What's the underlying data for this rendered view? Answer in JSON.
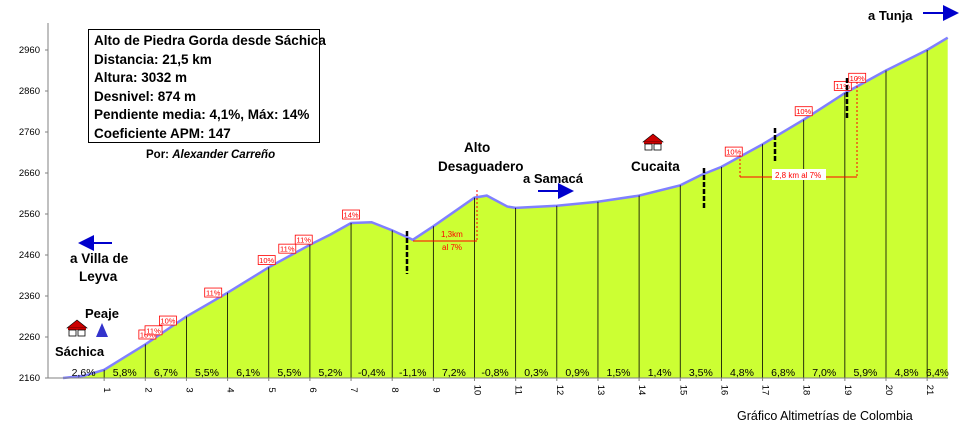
{
  "info": {
    "title": "Alto de Piedra Gorda desde Sáchica",
    "distance": "Distancia: 21,5 km",
    "altitude": "Altura: 3032 m",
    "gain": "Desnivel: 874 m",
    "gradient": "Pendiente media: 4,1%, Máx: 14%",
    "apm": "Coeficiente APM: 147",
    "author_prefix": "Por:",
    "author_name": "Alexander Carreño"
  },
  "credit": "Gráfico Altimetrías de Colombia",
  "labels": {
    "tunja": "a Tunja",
    "villa_de_leyva_1": "a Villa de",
    "villa_de_leyva_2": "Leyva",
    "peaje": "Peaje",
    "sachica": "Sáchica",
    "alto_1": "Alto",
    "alto_2": "Desaguadero",
    "samaca": "a Samacá",
    "cucaita": "Cucaita",
    "span1_1": "1,3km",
    "span1_2": "al 7%",
    "span2": "2,8 km al 7%"
  },
  "colors": {
    "fill": "#ccff33",
    "profile_line": "#8080ff",
    "arrow": "#0000cc",
    "badge": "#ff0000",
    "peaje_marker": "#3333cc"
  },
  "chart_data": {
    "type": "area",
    "title": "Alto de Piedra Gorda desde Sáchica",
    "xlabel": "",
    "ylabel": "",
    "xlim": [
      0,
      21.5
    ],
    "ylim": [
      2160,
      3010
    ],
    "y_ticks": [
      2160,
      2260,
      2360,
      2460,
      2560,
      2660,
      2760,
      2860,
      2960
    ],
    "x_ticks": [
      "1",
      "2",
      "3",
      "4",
      "5",
      "6",
      "7",
      "8",
      "9",
      "10",
      "11",
      "12",
      "13",
      "14",
      "15",
      "16",
      "17",
      "18",
      "19",
      "20",
      "21"
    ],
    "grid": false,
    "profile": [
      [
        0,
        2160
      ],
      [
        0.5,
        2165
      ],
      [
        1,
        2180
      ],
      [
        2,
        2242
      ],
      [
        3,
        2310
      ],
      [
        4,
        2368
      ],
      [
        5,
        2430
      ],
      [
        6,
        2485
      ],
      [
        6.5,
        2510
      ],
      [
        7,
        2538
      ],
      [
        7.5,
        2540
      ],
      [
        8,
        2520
      ],
      [
        8.5,
        2497
      ],
      [
        9,
        2530
      ],
      [
        10,
        2600
      ],
      [
        10.3,
        2605
      ],
      [
        10.8,
        2578
      ],
      [
        11,
        2575
      ],
      [
        12,
        2580
      ],
      [
        13,
        2590
      ],
      [
        14,
        2605
      ],
      [
        15,
        2630
      ],
      [
        15.5,
        2655
      ],
      [
        16,
        2675
      ],
      [
        17,
        2730
      ],
      [
        18,
        2790
      ],
      [
        19,
        2855
      ],
      [
        20,
        2910
      ],
      [
        21,
        2960
      ],
      [
        21.5,
        2990
      ]
    ],
    "segments": [
      {
        "km": 1,
        "pct": "2,6%"
      },
      {
        "km": 2,
        "pct": "5,8%"
      },
      {
        "km": 3,
        "pct": "6,7%"
      },
      {
        "km": 4,
        "pct": "5,5%"
      },
      {
        "km": 5,
        "pct": "6,1%"
      },
      {
        "km": 6,
        "pct": "5,5%"
      },
      {
        "km": 7,
        "pct": "5,2%"
      },
      {
        "km": 8,
        "pct": "-0,4%"
      },
      {
        "km": 9,
        "pct": "-1,1%"
      },
      {
        "km": 10,
        "pct": "7,2%"
      },
      {
        "km": 11,
        "pct": "-0,8%"
      },
      {
        "km": 12,
        "pct": "0,3%"
      },
      {
        "km": 13,
        "pct": "0,9%"
      },
      {
        "km": 14,
        "pct": "1,5%"
      },
      {
        "km": 15,
        "pct": "1,4%"
      },
      {
        "km": 16,
        "pct": "3,5%"
      },
      {
        "km": 17,
        "pct": "4,8%"
      },
      {
        "km": 18,
        "pct": "6,8%"
      },
      {
        "km": 19,
        "pct": "7,0%"
      },
      {
        "km": 20,
        "pct": "5,9%"
      },
      {
        "km": 21,
        "pct": "4,8%"
      },
      {
        "km": 21.5,
        "pct": "6,4%"
      }
    ],
    "max_badges": [
      {
        "km": 2.05,
        "label": "10%"
      },
      {
        "km": 2.2,
        "label": "11%"
      },
      {
        "km": 2.55,
        "label": "10%"
      },
      {
        "km": 3.65,
        "label": "11%"
      },
      {
        "km": 4.95,
        "label": "10%"
      },
      {
        "km": 5.45,
        "label": "11%"
      },
      {
        "km": 5.85,
        "label": "11%"
      },
      {
        "km": 7,
        "label": "14%"
      },
      {
        "km": 16.3,
        "label": "10%"
      },
      {
        "km": 18,
        "label": "10%"
      },
      {
        "km": 18.95,
        "label": "11%"
      },
      {
        "km": 19.3,
        "label": "10%"
      }
    ]
  }
}
